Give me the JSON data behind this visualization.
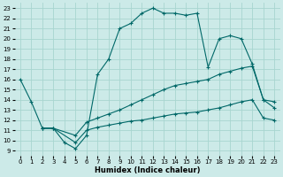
{
  "xlabel": "Humidex (Indice chaleur)",
  "background_color": "#cceae8",
  "grid_color": "#a8d5d0",
  "line_color": "#006868",
  "xlim": [
    -0.5,
    23.5
  ],
  "ylim": [
    8.5,
    23.5
  ],
  "xticks": [
    0,
    1,
    2,
    3,
    4,
    5,
    6,
    7,
    8,
    9,
    10,
    11,
    12,
    13,
    14,
    15,
    16,
    17,
    18,
    19,
    20,
    21,
    22,
    23
  ],
  "yticks": [
    9,
    10,
    11,
    12,
    13,
    14,
    15,
    16,
    17,
    18,
    19,
    20,
    21,
    22,
    23
  ],
  "line1_x": [
    0,
    1,
    2,
    3,
    4,
    5,
    6,
    7,
    8,
    9,
    10,
    11,
    12,
    13,
    14,
    15,
    16,
    17,
    18,
    19,
    20,
    21,
    22,
    23
  ],
  "line1_y": [
    16.0,
    13.8,
    11.2,
    11.2,
    9.8,
    9.2,
    10.5,
    16.5,
    18.0,
    21.0,
    21.5,
    22.5,
    23.0,
    22.5,
    22.5,
    22.3,
    22.5,
    17.2,
    20.0,
    20.3,
    20.0,
    17.5,
    14.0,
    13.8
  ],
  "line2_x": [
    2,
    3,
    5,
    6,
    7,
    8,
    9,
    10,
    11,
    12,
    13,
    14,
    15,
    16,
    17,
    18,
    19,
    20,
    21,
    22,
    23
  ],
  "line2_y": [
    11.2,
    11.2,
    10.5,
    11.8,
    12.2,
    12.6,
    13.0,
    13.5,
    14.0,
    14.5,
    15.0,
    15.4,
    15.6,
    15.8,
    16.0,
    16.5,
    16.8,
    17.1,
    17.3,
    14.0,
    13.2
  ],
  "line3_x": [
    2,
    3,
    5,
    6,
    7,
    8,
    9,
    10,
    11,
    12,
    13,
    14,
    15,
    16,
    17,
    18,
    19,
    20,
    21,
    22,
    23
  ],
  "line3_y": [
    11.2,
    11.2,
    9.8,
    11.0,
    11.3,
    11.5,
    11.7,
    11.9,
    12.0,
    12.2,
    12.4,
    12.6,
    12.7,
    12.8,
    13.0,
    13.2,
    13.5,
    13.8,
    14.0,
    12.2,
    12.0
  ],
  "tick_fontsize": 5.0,
  "xlabel_fontsize": 6.0,
  "marker_size": 3.0,
  "linewidth": 0.8
}
